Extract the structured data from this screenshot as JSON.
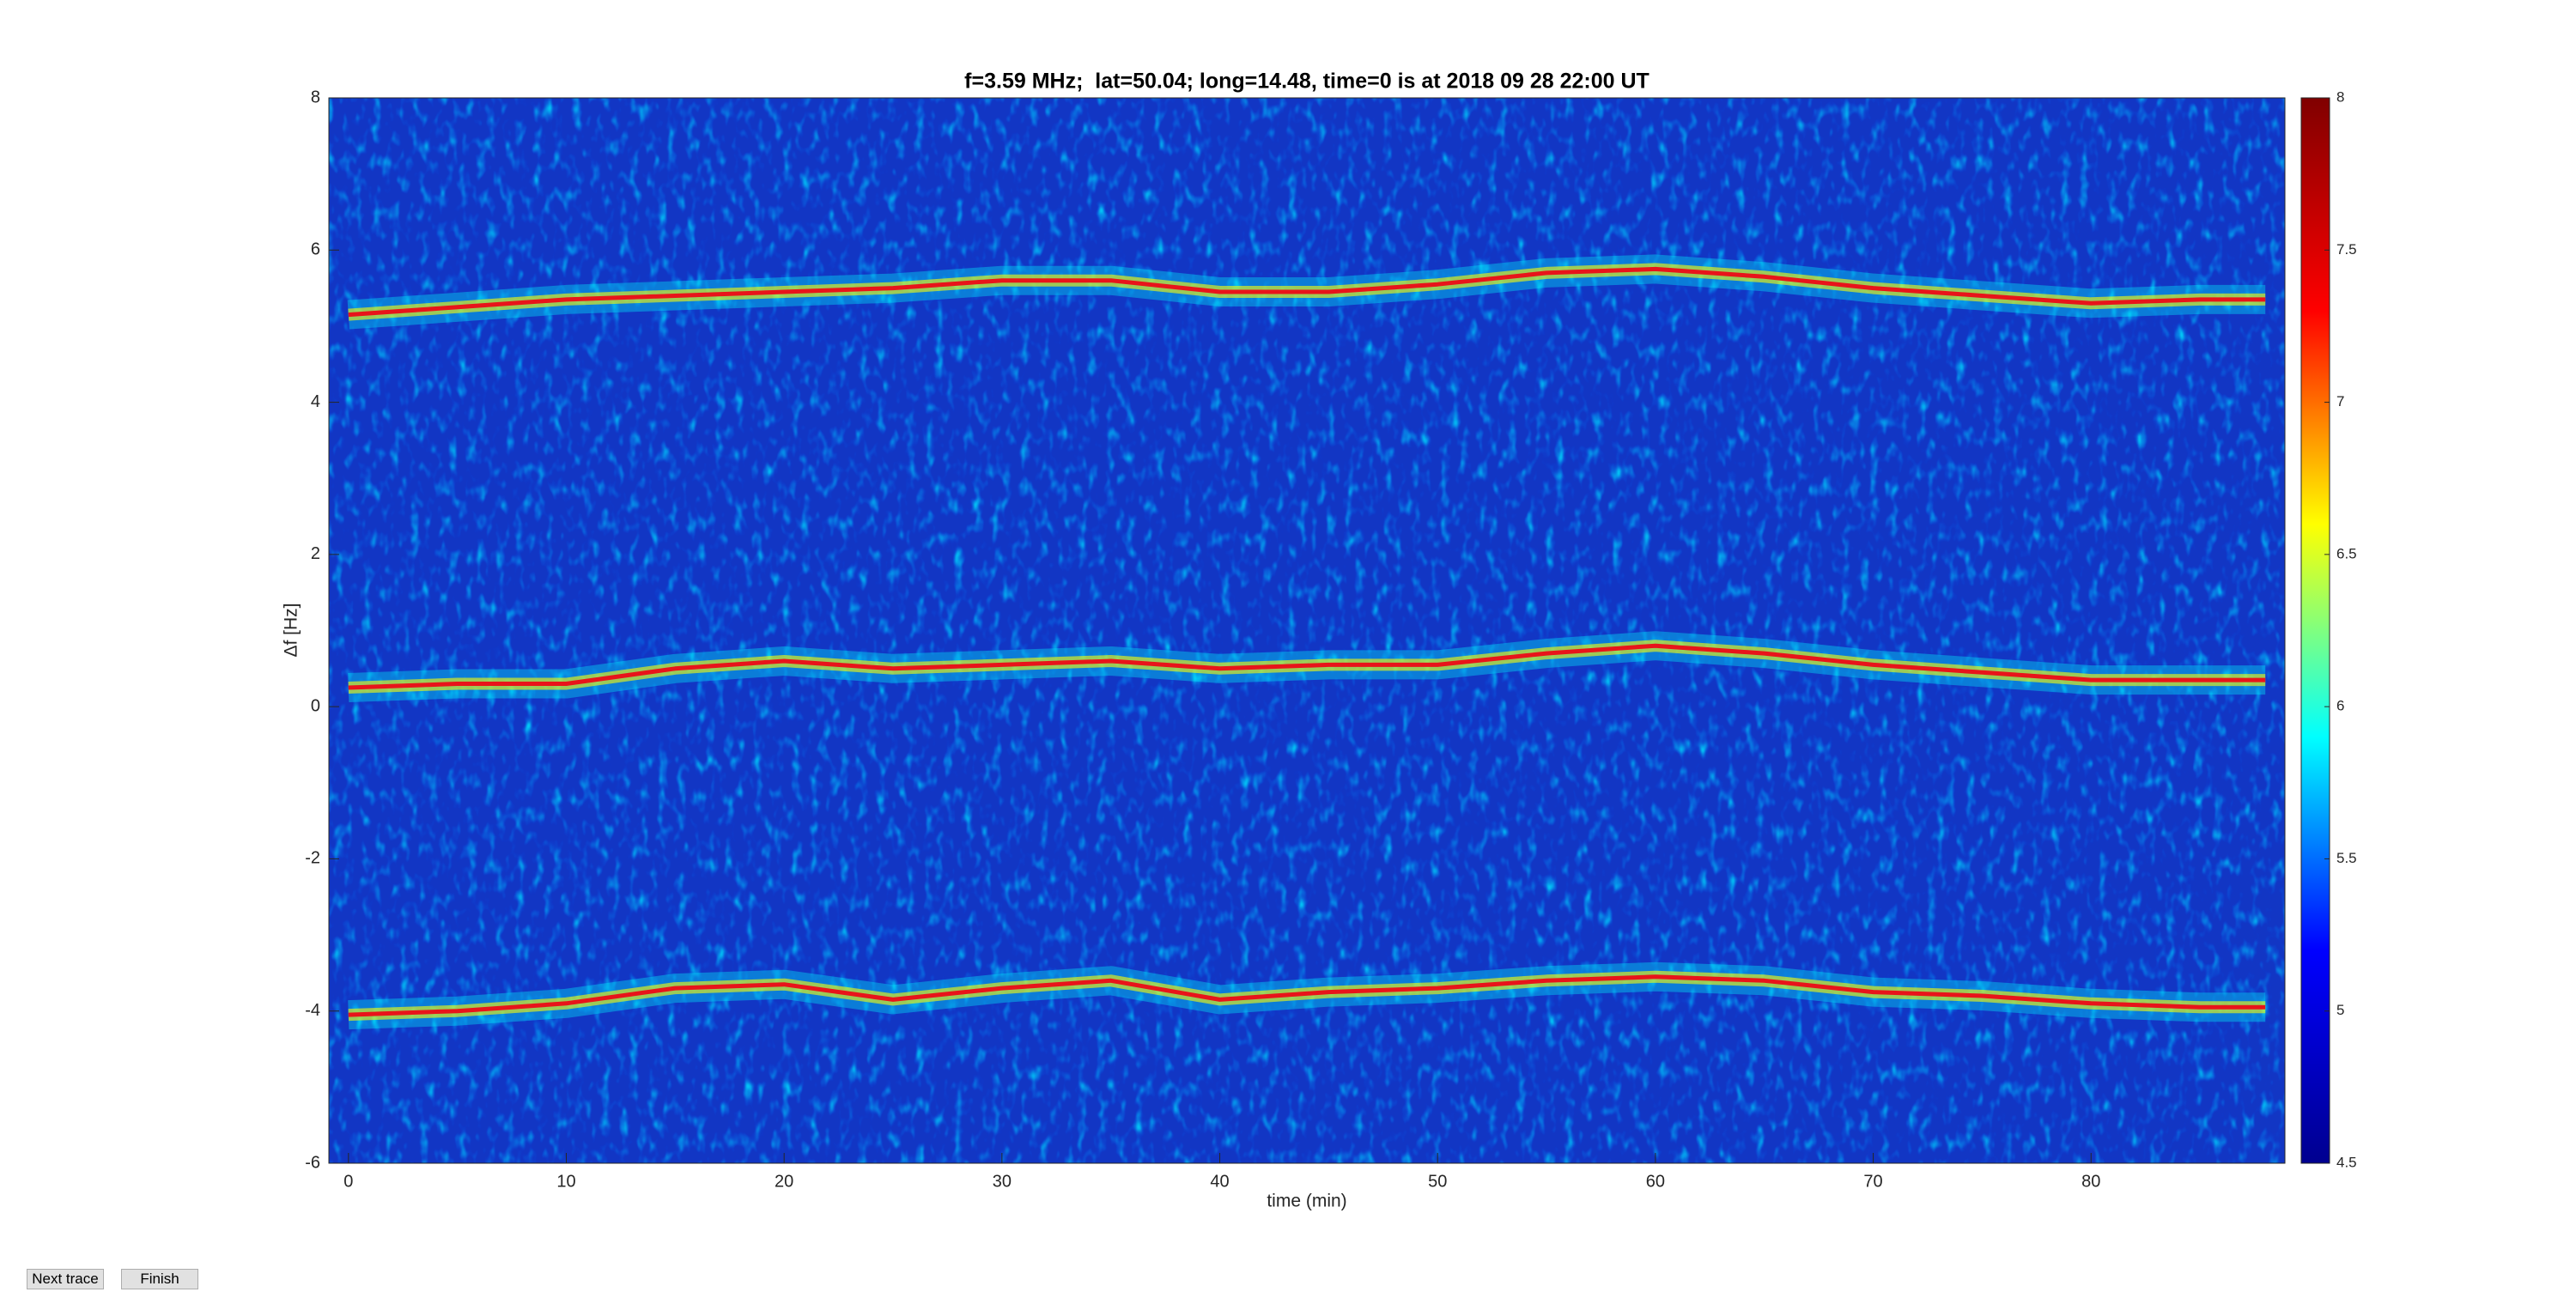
{
  "chart_data": {
    "type": "heatmap",
    "title": "f=3.59 MHz;  lat=50.04; long=14.48, time=0 is at 2018 09 28 22:00 UT",
    "x_label": "time (min)",
    "y_label": "Δf [Hz]",
    "xlim": [
      -0.9,
      88.9
    ],
    "xticks": [
      0,
      10,
      20,
      30,
      40,
      50,
      60,
      70,
      80
    ],
    "ylim": [
      -6,
      8
    ],
    "yticks": [
      -6,
      -4,
      -2,
      0,
      2,
      4,
      6,
      8
    ],
    "clim": [
      4.5,
      8
    ],
    "cticks": [
      4.5,
      5,
      5.5,
      6,
      6.5,
      7,
      7.5,
      8
    ],
    "colormap": [
      "#00008f",
      "#0000ff",
      "#00ffff",
      "#ffff00",
      "#ff0000",
      "#800000"
    ],
    "background": "#1236c4",
    "x": [
      0,
      5,
      10,
      15,
      20,
      25,
      30,
      35,
      40,
      45,
      50,
      55,
      60,
      65,
      70,
      75,
      80,
      85,
      88
    ],
    "series": [
      {
        "color": "#e8141a",
        "values": [
          5.15,
          5.25,
          5.35,
          5.4,
          5.45,
          5.5,
          5.6,
          5.6,
          5.45,
          5.45,
          5.55,
          5.7,
          5.75,
          5.65,
          5.5,
          5.4,
          5.3,
          5.35,
          5.35
        ]
      },
      {
        "color": "#e8141a",
        "values": [
          0.25,
          0.3,
          0.3,
          0.5,
          0.6,
          0.5,
          0.55,
          0.6,
          0.5,
          0.55,
          0.55,
          0.7,
          0.8,
          0.7,
          0.55,
          0.45,
          0.35,
          0.35,
          0.35
        ]
      },
      {
        "color": "#e8141a",
        "values": [
          -4.05,
          -4.0,
          -3.9,
          -3.7,
          -3.65,
          -3.85,
          -3.7,
          -3.6,
          -3.85,
          -3.75,
          -3.7,
          -3.6,
          -3.55,
          -3.6,
          -3.75,
          -3.8,
          -3.9,
          -3.95,
          -3.95
        ]
      }
    ]
  },
  "buttons": [
    "Next trace",
    "Finish"
  ]
}
